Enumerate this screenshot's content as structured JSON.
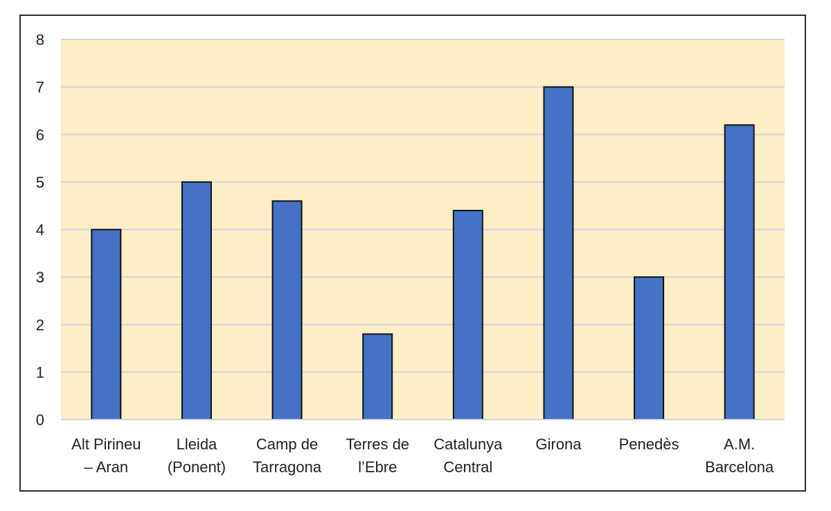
{
  "chart_data": {
    "type": "bar",
    "categories": [
      [
        "Alt Pirineu",
        "– Aran"
      ],
      [
        "Lleida",
        "(Ponent)"
      ],
      [
        "Camp de",
        "Tarragona"
      ],
      [
        "Terres de",
        "l’Ebre"
      ],
      [
        "Catalunya",
        "Central"
      ],
      [
        "Girona"
      ],
      [
        "Penedès"
      ],
      [
        "A.M.",
        "Barcelona"
      ]
    ],
    "values": [
      4,
      5,
      4.6,
      1.8,
      4.4,
      7,
      3,
      6.2
    ],
    "title": "",
    "xlabel": "",
    "ylabel": "",
    "ylim": [
      0,
      8
    ],
    "yticks": [
      "0",
      "1",
      "2",
      "3",
      "4",
      "5",
      "6",
      "7",
      "8"
    ],
    "grid": true,
    "colors": {
      "bar": "#4472c4",
      "bar_edge": "#111111",
      "plot_background": "#fdeec8",
      "gridline": "#d0d4da"
    }
  }
}
